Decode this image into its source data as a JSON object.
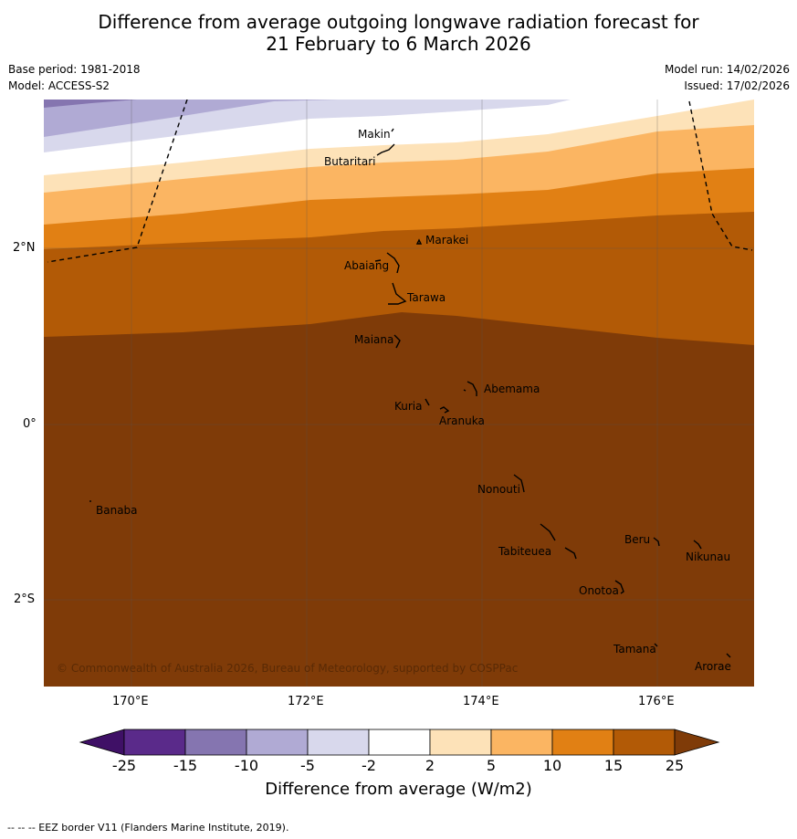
{
  "title_line1": "Difference from average outgoing longwave radiation forecast for",
  "title_line2": "21 February to 6 March 2026",
  "base_period": "Base period: 1981-2018",
  "model": "Model: ACCESS-S2",
  "model_run": "Model run: 14/02/2026",
  "issued": "Issued: 17/02/2026",
  "lat_labels": [
    "2°N",
    "0°",
    "2°S"
  ],
  "lon_labels": [
    "170°E",
    "172°E",
    "174°E",
    "176°E"
  ],
  "places": [
    "Makin",
    "Butaritari",
    "Marakei",
    "Abaiang",
    "Tarawa",
    "Maiana",
    "Abemama",
    "Kuria",
    "Aranuka",
    "Banaba",
    "Nonouti",
    "Beru",
    "Tabiteuea",
    "Nikunau",
    "Onotoa",
    "Tamana",
    "Arorae"
  ],
  "copyright": "© Commonwealth of Australia 2026, Bureau of Meteorology, supported by COSPPac",
  "colorbar": {
    "ticks": [
      "-25",
      "-15",
      "-10",
      "-5",
      "-2",
      "2",
      "5",
      "10",
      "15",
      "25"
    ],
    "colors": [
      "#3f1066",
      "#5a2a8a",
      "#8575b0",
      "#b0aad4",
      "#d8d8ec",
      "#ffffff",
      "#fde2b8",
      "#fbb562",
      "#e18014",
      "#b25a06",
      "#7f3b08"
    ],
    "title": "Difference from average (W/m2)"
  },
  "footer": "--  --  -- EEZ border V11 (Flanders Marine Institute, 2019)."
}
